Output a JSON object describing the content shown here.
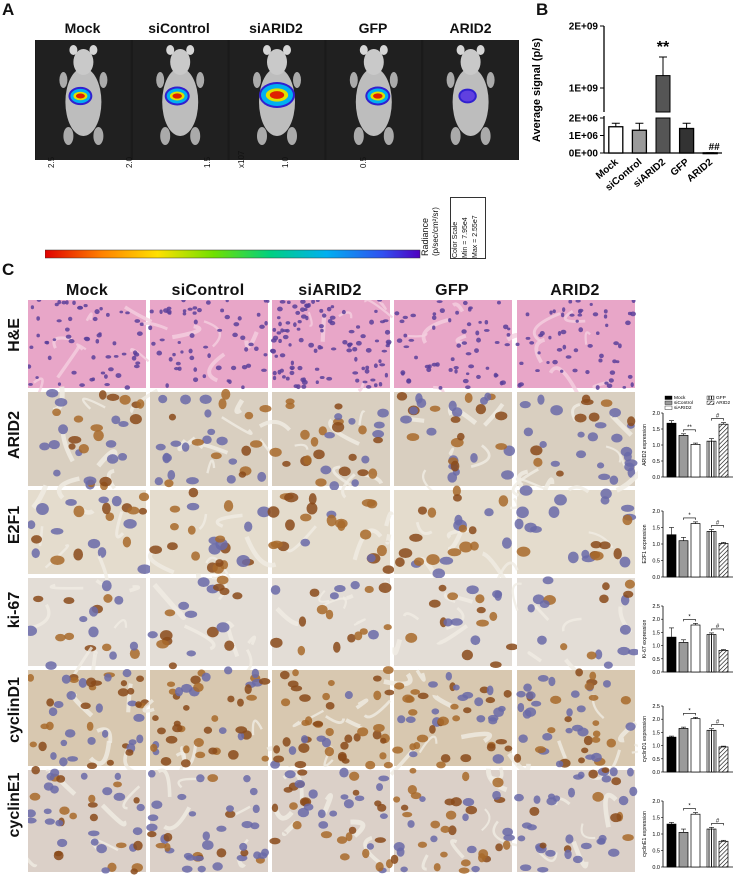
{
  "panels": {
    "a": "A",
    "b": "B",
    "c": "C"
  },
  "groups": [
    "Mock",
    "siControl",
    "siARID2",
    "GFP",
    "ARID2"
  ],
  "imaging": {
    "colorbar_ticks": [
      "2.5",
      "2.0",
      "1.5",
      "1.0",
      "0.5"
    ],
    "exponent": "x10",
    "exponent_power": "7",
    "radiance_label": "Radiance",
    "radiance_units": "(p/sec/cm²/sr)",
    "scale_title": "Color Scale",
    "scale_min": "Min = 7.95e4",
    "scale_max": "Max = 2.55e7",
    "tumor_levels": [
      0.45,
      0.5,
      1.0,
      0.5,
      0.2
    ]
  },
  "stain_rows": [
    "H&E",
    "ARID2",
    "E2F1",
    "ki-67",
    "cyclinD1",
    "cyclinE1"
  ],
  "colors": {
    "mock": "#000000",
    "sicontrol": "#9a9a9a",
    "siarid2": "#ffffff",
    "gfp": "#ffffff",
    "arid2": "#ffffff",
    "he_bg": "#e7a9c6",
    "ihc_bg": "#e6ddd0"
  },
  "chart_data": [
    {
      "type": "bar",
      "title": "",
      "categories": [
        "Mock",
        "siControl",
        "siARID2",
        "GFP",
        "ARID2"
      ],
      "values": [
        1500000,
        1300000,
        1200000000,
        1400000,
        10000
      ],
      "errors": [
        200000,
        400000,
        300000000,
        300000,
        5000
      ],
      "ylabel": "Average signal (p/s)",
      "yticks": [
        "0E+00",
        "1E+06",
        "2E+06",
        "1E+09",
        "2E+09"
      ],
      "axis_break": true,
      "annotations": [
        {
          "category": "siARID2",
          "text": "**"
        },
        {
          "category": "ARID2",
          "text": "##"
        }
      ]
    },
    {
      "type": "bar",
      "ylabel": "ARID2 expression",
      "categories": [
        "Mock",
        "siControl",
        "siARID2",
        "GFP",
        "ARID2"
      ],
      "values": [
        1.68,
        1.3,
        1.02,
        1.12,
        1.65
      ],
      "errors": [
        0.08,
        0.05,
        0.04,
        0.08,
        0.05
      ],
      "ylim": [
        0,
        2.0
      ],
      "yticks": [
        "0.0",
        "0.5",
        "1.0",
        "1.5",
        "2.0"
      ],
      "legend": [
        "Mock",
        "siControl",
        "siARID2",
        "GFP",
        "ARID2"
      ],
      "legend_placement": "top",
      "sig": [
        {
          "from": 1,
          "to": 2,
          "text": "**"
        },
        {
          "from": 3,
          "to": 4,
          "text": "#"
        }
      ]
    },
    {
      "type": "bar",
      "ylabel": "E2F1 expression",
      "categories": [
        "Mock",
        "siControl",
        "siARID2",
        "GFP",
        "ARID2"
      ],
      "values": [
        1.28,
        1.1,
        1.62,
        1.38,
        1.02
      ],
      "errors": [
        0.22,
        0.1,
        0.05,
        0.06,
        0.03
      ],
      "ylim": [
        0,
        2.0
      ],
      "yticks": [
        "0.0",
        "0.5",
        "1.0",
        "1.5",
        "2.0"
      ],
      "sig": [
        {
          "from": 1,
          "to": 2,
          "text": "*"
        },
        {
          "from": 3,
          "to": 4,
          "text": "#"
        }
      ]
    },
    {
      "type": "bar",
      "ylabel": "Ki-67 expression",
      "categories": [
        "Mock",
        "siControl",
        "siARID2",
        "GFP",
        "ARID2"
      ],
      "values": [
        1.32,
        1.12,
        1.78,
        1.42,
        0.82
      ],
      "errors": [
        0.35,
        0.1,
        0.06,
        0.06,
        0.03
      ],
      "ylim": [
        0,
        2.5
      ],
      "yticks": [
        "0.0",
        "0.5",
        "1.0",
        "1.5",
        "2.0",
        "2.5"
      ],
      "sig": [
        {
          "from": 1,
          "to": 2,
          "text": "*"
        },
        {
          "from": 3,
          "to": 4,
          "text": "#"
        }
      ]
    },
    {
      "type": "bar",
      "ylabel": "cyclinD1 expression",
      "categories": [
        "Mock",
        "siControl",
        "siARID2",
        "GFP",
        "ARID2"
      ],
      "values": [
        1.32,
        1.65,
        2.02,
        1.58,
        0.95
      ],
      "errors": [
        0.04,
        0.05,
        0.05,
        0.06,
        0.03
      ],
      "ylim": [
        0,
        2.5
      ],
      "yticks": [
        "0.0",
        "0.5",
        "1.0",
        "1.5",
        "2.0",
        "2.5"
      ],
      "sig": [
        {
          "from": 1,
          "to": 2,
          "text": "*"
        },
        {
          "from": 3,
          "to": 4,
          "text": "#"
        }
      ]
    },
    {
      "type": "bar",
      "ylabel": "cyclinE1 expression",
      "categories": [
        "Mock",
        "siControl",
        "siARID2",
        "GFP",
        "ARID2"
      ],
      "values": [
        1.3,
        1.05,
        1.6,
        1.15,
        0.78
      ],
      "errors": [
        0.05,
        0.1,
        0.05,
        0.05,
        0.03
      ],
      "ylim": [
        0,
        2.0
      ],
      "yticks": [
        "0.0",
        "0.5",
        "1.0",
        "1.5",
        "2.0"
      ],
      "sig": [
        {
          "from": 1,
          "to": 2,
          "text": "*"
        },
        {
          "from": 3,
          "to": 4,
          "text": "#"
        }
      ]
    }
  ]
}
